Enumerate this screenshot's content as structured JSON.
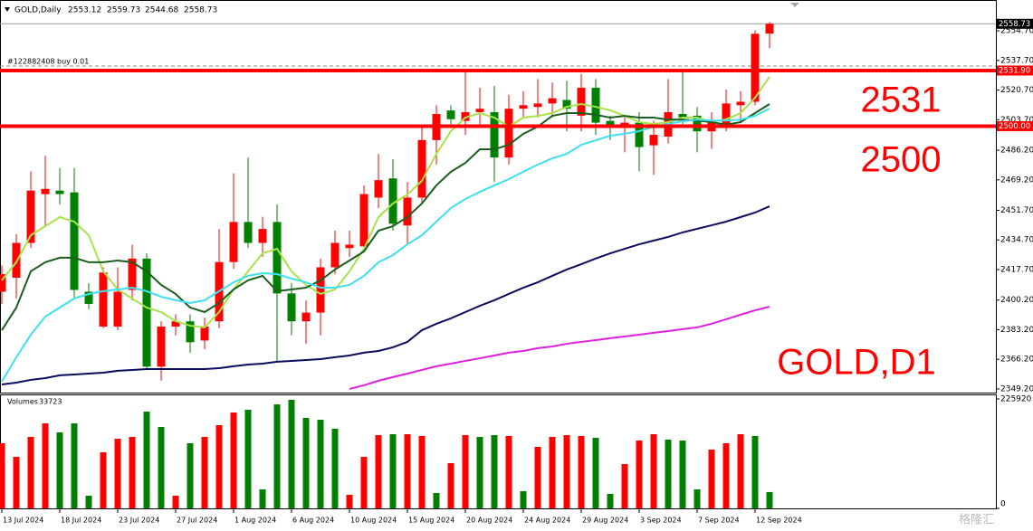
{
  "chart_data": {
    "type": "candlestick",
    "symbol": "GOLD,Daily",
    "categories": [
      "13 Jul 2024",
      null,
      null,
      null,
      "18 Jul 2024",
      null,
      null,
      null,
      "23 Jul 2024",
      null,
      null,
      null,
      "27 Jul 2024",
      null,
      null,
      null,
      "1 Aug 2024",
      null,
      null,
      null,
      "6 Aug 2024",
      null,
      null,
      null,
      "10 Aug 2024",
      null,
      null,
      null,
      "15 Aug 2024",
      null,
      null,
      null,
      "20 Aug 2024",
      null,
      null,
      null,
      "24 Aug 2024",
      null,
      null,
      null,
      "29 Aug 2024",
      null,
      null,
      null,
      "3 Sep 2024",
      null,
      null,
      null,
      "7 Sep 2024",
      null,
      null,
      null,
      "12 Sep 2024",
      null
    ],
    "open": [
      2405,
      2413,
      2433,
      2461,
      2463,
      2462,
      2405,
      2385,
      2385,
      2406,
      2424,
      2362,
      2385,
      2388,
      2377,
      2388,
      2422,
      2445,
      2433,
      2445,
      2404,
      2388,
      2393,
      2419,
      2430,
      2431,
      2459,
      2470,
      2443,
      2459,
      2492,
      2509,
      2503,
      2508,
      2508,
      2482,
      2510,
      2511,
      2513,
      2515,
      2506,
      2522,
      2503,
      2500,
      2502,
      2489,
      2494,
      2507,
      2506,
      2497,
      2500,
      2512,
      2514,
      2553.12
    ],
    "high": [
      2420,
      2438,
      2474,
      2483,
      2476,
      2476,
      2410,
      2419,
      2419,
      2432,
      2427,
      2388,
      2392,
      2392,
      2390,
      2441,
      2473,
      2482,
      2448,
      2455,
      2410,
      2400,
      2424,
      2440,
      2440,
      2466,
      2484,
      2481,
      2468,
      2499,
      2512,
      2512,
      2531,
      2522,
      2523,
      2518,
      2520,
      2527,
      2525,
      2526,
      2530,
      2527,
      2506,
      2505,
      2508,
      2503,
      2527,
      2531,
      2511,
      2508,
      2521,
      2520,
      2555,
      2559.73
    ],
    "low": [
      2398,
      2401,
      2430,
      2443,
      2455,
      2401,
      2395,
      2384,
      2383,
      2400,
      2360,
      2354,
      2380,
      2370,
      2372,
      2384,
      2418,
      2430,
      2425,
      2365,
      2380,
      2375,
      2380,
      2415,
      2425,
      2428,
      2453,
      2440,
      2432,
      2456,
      2478,
      2499,
      2495,
      2500,
      2468,
      2478,
      2505,
      2505,
      2505,
      2497,
      2497,
      2495,
      2492,
      2485,
      2474,
      2472,
      2490,
      2499,
      2485,
      2487,
      2497,
      2502,
      2512,
      2544.68
    ],
    "close": [
      2415,
      2433,
      2463,
      2464,
      2461,
      2406,
      2398,
      2416,
      2405,
      2424,
      2362,
      2385,
      2388,
      2376,
      2385,
      2422,
      2445,
      2433,
      2441,
      2404,
      2388,
      2393,
      2419,
      2433,
      2432,
      2461,
      2469,
      2444,
      2459,
      2492,
      2507,
      2504,
      2508,
      2510,
      2482,
      2510,
      2512,
      2513,
      2516,
      2510,
      2522,
      2502,
      2500,
      2502,
      2488,
      2495,
      2508,
      2505,
      2497,
      2502,
      2513,
      2514,
      2553,
      2558.73
    ],
    "up_color": "#ff0000",
    "down_color": "#008000",
    "ylim": [
      2347.1,
      2562.0
    ],
    "yticks": [
      {
        "value": 2554.7,
        "label": "2554.70"
      },
      {
        "value": 2537.7,
        "label": "2537.70"
      },
      {
        "value": 2520.7,
        "label": "2520.70"
      },
      {
        "value": 2503.7,
        "label": "2503.70"
      },
      {
        "value": 2486.2,
        "label": "2486.20"
      },
      {
        "value": 2469.2,
        "label": "2469.20"
      },
      {
        "value": 2451.7,
        "label": "2451.70"
      },
      {
        "value": 2434.7,
        "label": "2434.70"
      },
      {
        "value": 2417.7,
        "label": "2417.70"
      },
      {
        "value": 2400.2,
        "label": "2400.20"
      },
      {
        "value": 2383.2,
        "label": "2383.20"
      },
      {
        "value": 2366.2,
        "label": "2366.20"
      },
      {
        "value": 2349.2,
        "label": "2349.20"
      }
    ],
    "moving_averages": [
      {
        "color": "#a6e44a",
        "values": [
          2411.5,
          2421.9,
          2437.4,
          2442.6,
          2447.8,
          2445.2,
          2437.4,
          2416.7,
          2406.3,
          2401.1,
          2395.9,
          2393.3,
          2388.1,
          2385.5,
          2384.5,
          2393.3,
          2406.3,
          2416.7,
          2427.0,
          2429.6,
          2416.7,
          2408.9,
          2403.7,
          2406.3,
          2416.7,
          2429.6,
          2447.8,
          2455.6,
          2460.8,
          2468.6,
          2484.1,
          2497.1,
          2504.9,
          2507.5,
          2504.9,
          2499.7,
          2504.9,
          2505.9,
          2507.5,
          2511.1,
          2512.7,
          2511.1,
          2509.1,
          2505.9,
          2502.3,
          2501.3,
          2502.3,
          2504.9,
          2504.9,
          2502.3,
          2503.9,
          2507.5,
          2516.3,
          2528.3
        ]
      },
      {
        "color": "#1b5e20",
        "values": [
          2382.9,
          2395.9,
          2416.7,
          2421.9,
          2424.5,
          2424.5,
          2421.9,
          2421.9,
          2422.9,
          2421.9,
          2416.7,
          2408.9,
          2403.7,
          2395.9,
          2393.3,
          2398.5,
          2406.3,
          2411.5,
          2414.1,
          2405.3,
          2406.3,
          2407.3,
          2411.5,
          2417.7,
          2422.9,
          2428.1,
          2440.0,
          2442.6,
          2447.8,
          2455.6,
          2466.0,
          2473.8,
          2478.9,
          2486.7,
          2486.7,
          2489.3,
          2495.6,
          2499.7,
          2505.9,
          2507.5,
          2507.5,
          2506.5,
          2504.9,
          2505.9,
          2504.9,
          2504.9,
          2503.7,
          2503.7,
          2503.2,
          2502.3,
          2500.8,
          2502.3,
          2507.5,
          2512.7
        ]
      },
      {
        "color": "#3ee0f0",
        "values": [
          2353.4,
          2367.4,
          2380.3,
          2390.7,
          2395.9,
          2401.1,
          2403.7,
          2405.3,
          2406.3,
          2407.3,
          2405.3,
          2402.1,
          2400.1,
          2398.5,
          2400.1,
          2405.3,
          2410.4,
          2414.1,
          2415.6,
          2415.1,
          2412.5,
          2410.4,
          2407.3,
          2407.3,
          2408.9,
          2414.1,
          2421.9,
          2426.0,
          2432.2,
          2437.4,
          2445.2,
          2453.0,
          2458.2,
          2462.3,
          2466.0,
          2469.6,
          2473.8,
          2477.9,
          2481.5,
          2484.1,
          2489.3,
          2491.9,
          2494.5,
          2495.6,
          2497.1,
          2499.7,
          2501.3,
          2502.8,
          2503.7,
          2503.2,
          2503.2,
          2503.7,
          2505.9,
          2510.1
        ]
      },
      {
        "color": "#0c0c5e",
        "values": [
          2351.8,
          2352.8,
          2354.4,
          2355.4,
          2357.0,
          2357.5,
          2358.0,
          2358.5,
          2359.6,
          2360.1,
          2360.6,
          2360.6,
          2360.6,
          2360.6,
          2360.6,
          2361.1,
          2362.2,
          2363.2,
          2363.7,
          2364.8,
          2365.3,
          2365.8,
          2366.3,
          2367.4,
          2368.4,
          2370.0,
          2371.0,
          2373.1,
          2376.2,
          2382.9,
          2386.6,
          2389.7,
          2393.3,
          2396.9,
          2400.1,
          2403.7,
          2407.3,
          2410.4,
          2414.1,
          2417.7,
          2420.8,
          2424.0,
          2427.0,
          2429.6,
          2432.2,
          2434.3,
          2436.4,
          2439.0,
          2441.1,
          2443.1,
          2445.2,
          2447.8,
          2450.4,
          2454.0
        ]
      },
      {
        "color": "#e020e0",
        "values": [
          null,
          null,
          null,
          null,
          null,
          null,
          null,
          null,
          null,
          null,
          null,
          null,
          null,
          null,
          null,
          null,
          null,
          null,
          null,
          null,
          null,
          null,
          null,
          null,
          2349.2,
          2351.3,
          2353.9,
          2356.0,
          2358.0,
          2360.1,
          2362.2,
          2363.7,
          2365.3,
          2366.8,
          2368.4,
          2370.0,
          2371.0,
          2372.6,
          2373.6,
          2375.1,
          2376.2,
          2377.2,
          2378.3,
          2379.3,
          2380.3,
          2381.4,
          2382.4,
          2383.5,
          2384.5,
          2386.6,
          2389.2,
          2391.8,
          2394.3,
          2396.4
        ]
      }
    ],
    "levels": [
      {
        "value": 2531.9,
        "label": "2531.90",
        "color": "#ff0000"
      },
      {
        "value": 2500.0,
        "label": "2500.00",
        "color": "#ff0000"
      }
    ],
    "order_line": {
      "value": 2534.5,
      "label": "#122882408 buy 0.01"
    },
    "annotations": [
      "2531",
      "2500",
      "GOLD,D1"
    ],
    "volume": {
      "title": "Volumes",
      "values": [
        134424,
        106419,
        147493,
        175498,
        156828,
        175498,
        26138,
        115754,
        143759,
        147493,
        199769,
        168030,
        26138,
        134424,
        147493,
        171764,
        197902,
        203503,
        39207,
        214705,
        224040,
        186700,
        182966,
        164296,
        28005,
        106419,
        151227,
        153094,
        153094,
        149360,
        31739,
        93350,
        151227,
        147493,
        151227,
        149360,
        35473,
        126956,
        147493,
        151227,
        149360,
        145626,
        29872,
        91483,
        140025,
        153094,
        141892,
        140025,
        39207,
        121355,
        134424,
        153094,
        149360,
        33723
      ],
      "colors": [
        "#ff0000",
        "#ff0000",
        "#ff0000",
        "#ff0000",
        "#008000",
        "#008000",
        "#008000",
        "#ff0000",
        "#ff0000",
        "#ff0000",
        "#008000",
        "#008000",
        "#ff0000",
        "#008000",
        "#ff0000",
        "#ff0000",
        "#ff0000",
        "#008000",
        "#008000",
        "#008000",
        "#008000",
        "#008000",
        "#008000",
        "#008000",
        "#ff0000",
        "#ff0000",
        "#ff0000",
        "#008000",
        "#ff0000",
        "#ff0000",
        "#008000",
        "#ff0000",
        "#ff0000",
        "#008000",
        "#008000",
        "#ff0000",
        "#008000",
        "#ff0000",
        "#ff0000",
        "#ff0000",
        "#ff0000",
        "#008000",
        "#008000",
        "#ff0000",
        "#ff0000",
        "#ff0000",
        "#008000",
        "#008000",
        "#008000",
        "#ff0000",
        "#ff0000",
        "#ff0000",
        "#008000",
        "#008000"
      ],
      "ylim": [
        0,
        225920
      ],
      "yticks": [
        0,
        225920
      ]
    },
    "watermark": "格隆汇"
  }
}
